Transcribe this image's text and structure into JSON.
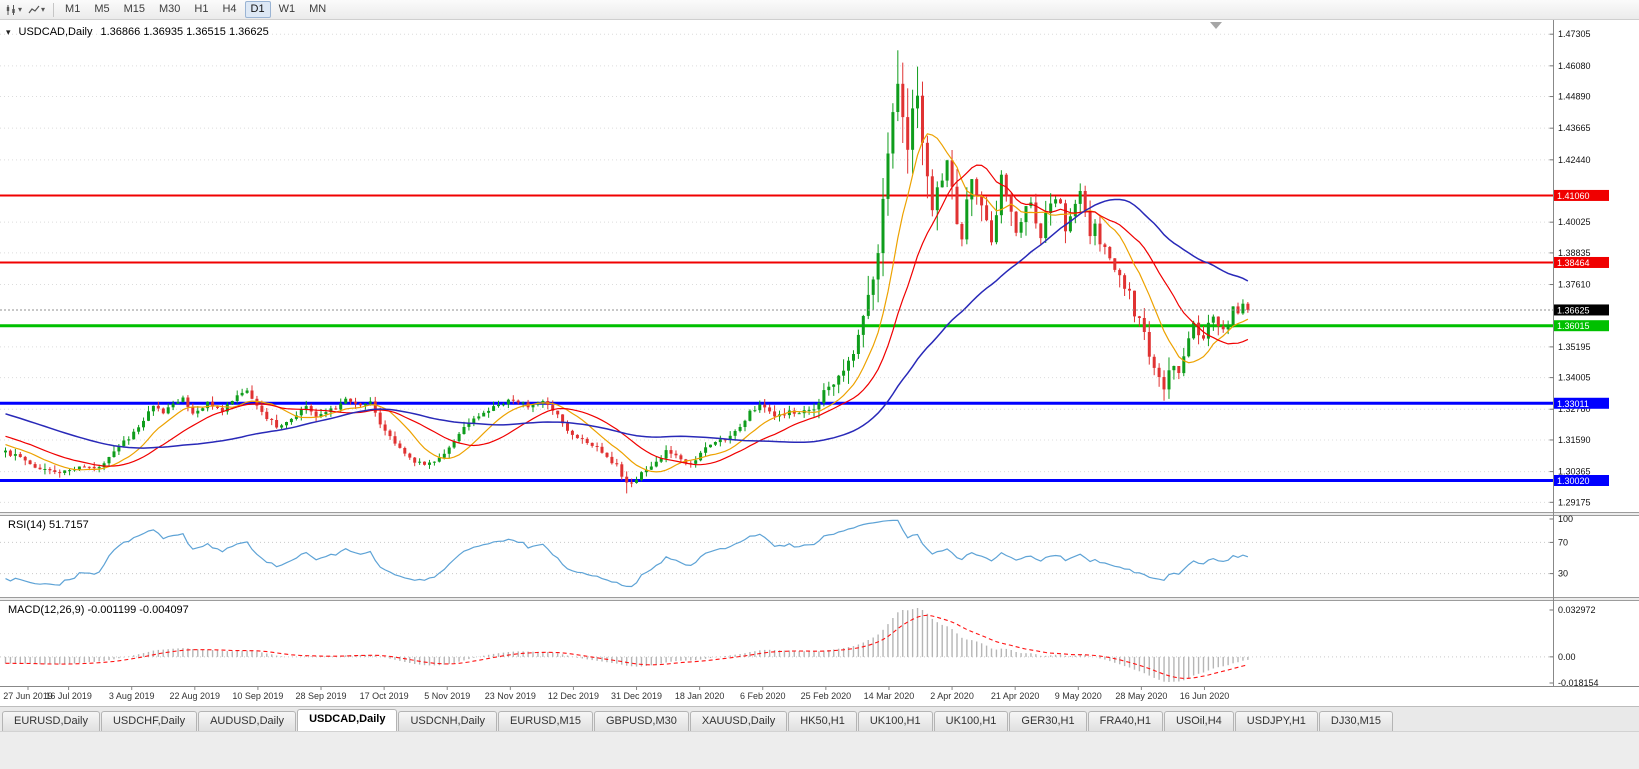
{
  "toolbar": {
    "periods": [
      "M1",
      "M5",
      "M15",
      "M30",
      "H1",
      "H4",
      "D1",
      "W1",
      "MN"
    ],
    "active_period": "D1",
    "icons": [
      "candlestick-chart-icon",
      "line-chart-icon"
    ]
  },
  "chart_header": {
    "symbol": "USDCAD,Daily",
    "ohlc": "1.36866 1.36935 1.36515 1.36625"
  },
  "price_axis": {
    "ticks": [
      "1.47305",
      "1.46080",
      "1.44890",
      "1.43665",
      "1.42440",
      "1.40025",
      "1.38835",
      "1.37610",
      "1.35195",
      "1.34005",
      "1.32780",
      "1.31590",
      "1.30365",
      "1.29175"
    ],
    "tags": [
      {
        "label": "1.41060",
        "price": 1.4106,
        "color": "#f00000",
        "line_width": 2
      },
      {
        "label": "1.38464",
        "price": 1.38464,
        "color": "#f00000",
        "line_width": 2
      },
      {
        "label": "1.36015",
        "price": 1.36015,
        "color": "#00c000",
        "line_width": 3
      },
      {
        "label": "1.33011",
        "price": 1.33011,
        "color": "#0000ff",
        "line_width": 3
      },
      {
        "label": "1.30020",
        "price": 1.3002,
        "color": "#0000ff",
        "line_width": 3
      }
    ],
    "current_price": {
      "label": "1.36625",
      "price": 1.36625,
      "color": "#000000"
    }
  },
  "x_axis": {
    "labels": [
      "27 Jun 2019",
      "16 Jul 2019",
      "3 Aug 2019",
      "22 Aug 2019",
      "10 Sep 2019",
      "28 Sep 2019",
      "17 Oct 2019",
      "5 Nov 2019",
      "23 Nov 2019",
      "12 Dec 2019",
      "31 Dec 2019",
      "18 Jan 2020",
      "6 Feb 2020",
      "25 Feb 2020",
      "14 Mar 2020",
      "2 Apr 2020",
      "21 Apr 2020",
      "9 May 2020",
      "28 May 2020",
      "16 Jun 2020"
    ]
  },
  "rsi_panel": {
    "title": "RSI(14) 51.7157",
    "levels": [
      "100",
      "70",
      "30"
    ],
    "line_color": "#5ea3d6"
  },
  "macd_panel": {
    "title": "MACD(12,26,9) -0.001199 -0.004097",
    "axis_labels": [
      "0.032972",
      "0.00",
      "-0.018154"
    ],
    "histogram_color": "#b6b6b6",
    "signal_color": "#ff1414"
  },
  "tabs": [
    "EURUSD,Daily",
    "USDCHF,Daily",
    "AUDUSD,Daily",
    "USDCAD,Daily",
    "USDCNH,Daily",
    "EURUSD,M15",
    "GBPUSD,M30",
    "XAUUSD,Daily",
    "HK50,H1",
    "UK100,H1",
    "UK100,H1",
    "GER30,H1",
    "FRA40,H1",
    "USOil,H4",
    "USDJPY,H1",
    "DJ30,M15"
  ],
  "active_tab_index": 3,
  "chart_data": {
    "type": "candlestick",
    "symbol": "USDCAD",
    "timeframe": "Daily",
    "bars": 253,
    "price_range": [
      1.288,
      1.477
    ],
    "date_range": [
      "27 Jun 2019",
      "16 Jun 2020+"
    ],
    "last_bar": {
      "open": 1.36866,
      "high": 1.36935,
      "low": 1.36515,
      "close": 1.36625
    },
    "colors": {
      "up": "#0f9d1c",
      "down": "#e03232"
    },
    "close_anchors": [
      [
        0,
        1.3115
      ],
      [
        4,
        1.3075
      ],
      [
        8,
        1.3042
      ],
      [
        12,
        1.3038
      ],
      [
        15,
        1.3062
      ],
      [
        18,
        1.3048
      ],
      [
        21,
        1.3092
      ],
      [
        24,
        1.315
      ],
      [
        27,
        1.3212
      ],
      [
        30,
        1.3285
      ],
      [
        32,
        1.3258
      ],
      [
        34,
        1.3305
      ],
      [
        36,
        1.3322
      ],
      [
        38,
        1.327
      ],
      [
        41,
        1.3302
      ],
      [
        44,
        1.3278
      ],
      [
        47,
        1.333
      ],
      [
        49,
        1.3345
      ],
      [
        52,
        1.3262
      ],
      [
        55,
        1.3212
      ],
      [
        58,
        1.3248
      ],
      [
        61,
        1.3295
      ],
      [
        63,
        1.3248
      ],
      [
        66,
        1.3272
      ],
      [
        69,
        1.3312
      ],
      [
        72,
        1.3288
      ],
      [
        74,
        1.3308
      ],
      [
        76,
        1.3228
      ],
      [
        79,
        1.3148
      ],
      [
        82,
        1.3088
      ],
      [
        85,
        1.3058
      ],
      [
        88,
        1.3088
      ],
      [
        91,
        1.3162
      ],
      [
        94,
        1.3232
      ],
      [
        97,
        1.3272
      ],
      [
        100,
        1.3298
      ],
      [
        103,
        1.3312
      ],
      [
        106,
        1.3288
      ],
      [
        109,
        1.3302
      ],
      [
        112,
        1.3252
      ],
      [
        115,
        1.3178
      ],
      [
        118,
        1.3152
      ],
      [
        121,
        1.3118
      ],
      [
        124,
        1.3058
      ],
      [
        126,
        1.2988
      ],
      [
        128,
        1.3012
      ],
      [
        131,
        1.3062
      ],
      [
        134,
        1.3112
      ],
      [
        137,
        1.3082
      ],
      [
        139,
        1.3065
      ],
      [
        142,
        1.3122
      ],
      [
        145,
        1.3158
      ],
      [
        148,
        1.3188
      ],
      [
        151,
        1.3268
      ],
      [
        153,
        1.3295
      ],
      [
        156,
        1.3242
      ],
      [
        159,
        1.3262
      ],
      [
        162,
        1.3272
      ],
      [
        164,
        1.3288
      ],
      [
        166,
        1.3342
      ],
      [
        168,
        1.3392
      ],
      [
        170,
        1.3422
      ],
      [
        172,
        1.3478
      ],
      [
        174,
        1.3628
      ],
      [
        176,
        1.3782
      ],
      [
        178,
        1.4052
      ],
      [
        180,
        1.4402
      ],
      [
        181,
        1.4558
      ],
      [
        182,
        1.4378
      ],
      [
        183,
        1.4252
      ],
      [
        184,
        1.4418
      ],
      [
        185,
        1.4478
      ],
      [
        186,
        1.4302
      ],
      [
        187,
        1.4152
      ],
      [
        188,
        1.4062
      ],
      [
        189,
        1.4128
      ],
      [
        190,
        1.4198
      ],
      [
        191,
        1.4258
      ],
      [
        192,
        1.4112
      ],
      [
        193,
        1.4022
      ],
      [
        194,
        1.3962
      ],
      [
        195,
        1.4078
      ],
      [
        196,
        1.4178
      ],
      [
        197,
        1.4118
      ],
      [
        198,
        1.4058
      ],
      [
        199,
        1.3992
      ],
      [
        200,
        1.3932
      ],
      [
        201,
        1.4048
      ],
      [
        202,
        1.4168
      ],
      [
        203,
        1.4098
      ],
      [
        204,
        1.4042
      ],
      [
        205,
        1.3958
      ],
      [
        206,
        1.3992
      ],
      [
        207,
        1.4058
      ],
      [
        208,
        1.4088
      ],
      [
        209,
        1.4012
      ],
      [
        210,
        1.3952
      ],
      [
        211,
        1.4018
      ],
      [
        212,
        1.4078
      ],
      [
        213,
        1.4108
      ],
      [
        214,
        1.4058
      ],
      [
        215,
        1.3978
      ],
      [
        216,
        1.4038
      ],
      [
        217,
        1.4088
      ],
      [
        218,
        1.4108
      ],
      [
        219,
        1.4028
      ],
      [
        220,
        1.3958
      ],
      [
        221,
        1.3992
      ],
      [
        222,
        1.3928
      ],
      [
        224,
        1.3862
      ],
      [
        226,
        1.3782
      ],
      [
        228,
        1.3718
      ],
      [
        229,
        1.3648
      ],
      [
        230,
        1.3628
      ],
      [
        231,
        1.3568
      ],
      [
        232,
        1.3502
      ],
      [
        233,
        1.3448
      ],
      [
        234,
        1.3392
      ],
      [
        235,
        1.3368
      ],
      [
        236,
        1.3418
      ],
      [
        237,
        1.3448
      ],
      [
        238,
        1.3408
      ],
      [
        239,
        1.3488
      ],
      [
        240,
        1.3558
      ],
      [
        241,
        1.3598
      ],
      [
        242,
        1.3572
      ],
      [
        243,
        1.3562
      ],
      [
        244,
        1.3598
      ],
      [
        245,
        1.3638
      ],
      [
        246,
        1.3612
      ],
      [
        247,
        1.3582
      ],
      [
        248,
        1.3618
      ],
      [
        249,
        1.3662
      ],
      [
        250,
        1.3642
      ],
      [
        251,
        1.3688
      ],
      [
        252,
        1.36625
      ]
    ],
    "volatility_anchors": [
      [
        0,
        0.0042
      ],
      [
        150,
        0.0042
      ],
      [
        162,
        0.0055
      ],
      [
        168,
        0.0085
      ],
      [
        172,
        0.011
      ],
      [
        176,
        0.016
      ],
      [
        179,
        0.021
      ],
      [
        182,
        0.024
      ],
      [
        186,
        0.021
      ],
      [
        190,
        0.017
      ],
      [
        196,
        0.013
      ],
      [
        205,
        0.011
      ],
      [
        215,
        0.0095
      ],
      [
        222,
        0.0085
      ],
      [
        228,
        0.0105
      ],
      [
        236,
        0.0105
      ],
      [
        242,
        0.008
      ],
      [
        252,
        0.006
      ]
    ],
    "forced_extremes": [
      {
        "index": 126,
        "low": 1.2952
      },
      {
        "index": 181,
        "high": 1.4668
      },
      {
        "index": 185,
        "high": 1.4605
      },
      {
        "index": 235,
        "low": 1.333
      }
    ],
    "overlays": [
      {
        "name": "ma-fast",
        "type": "sma",
        "period": 10,
        "color": "#eda200",
        "width": 1.2
      },
      {
        "name": "ma-mid",
        "type": "sma",
        "period": 20,
        "color": "#f00000",
        "width": 1.2
      },
      {
        "name": "ma-slow",
        "type": "sma",
        "period": 50,
        "color": "#2929b8",
        "width": 1.5
      }
    ],
    "indicators": [
      {
        "name": "RSI",
        "period": 14,
        "current": 51.7157
      },
      {
        "name": "MACD",
        "fast": 12,
        "slow": 26,
        "signal": 9,
        "current": -0.001199,
        "signal_current": -0.004097
      }
    ],
    "horizontal_lines": [
      {
        "price": 1.4106,
        "color": "red"
      },
      {
        "price": 1.38464,
        "color": "red"
      },
      {
        "price": 1.36015,
        "color": "green"
      },
      {
        "price": 1.33011,
        "color": "blue"
      },
      {
        "price": 1.3002,
        "color": "blue"
      }
    ]
  }
}
